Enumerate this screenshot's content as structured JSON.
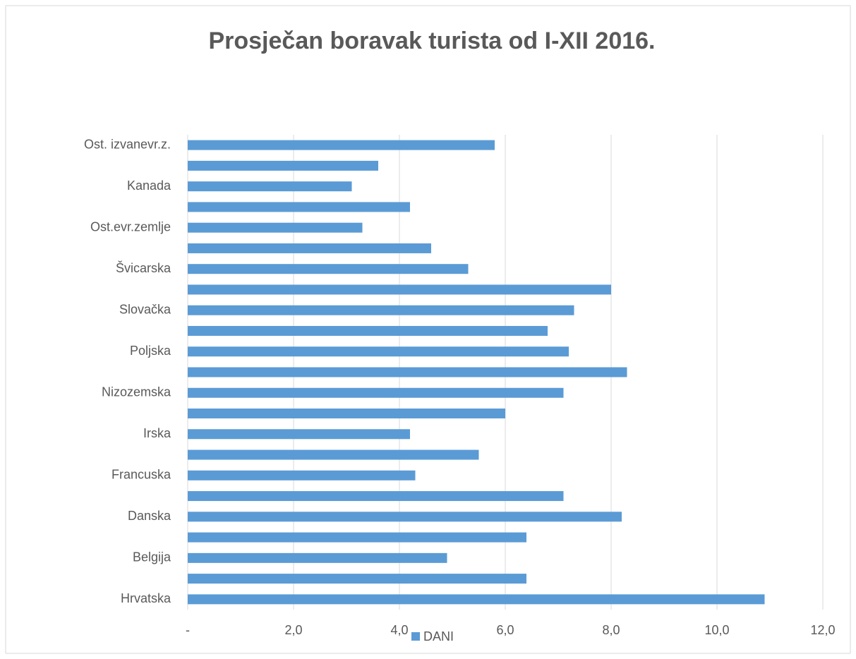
{
  "chart_data": {
    "type": "bar",
    "orientation": "horizontal",
    "title": "Prosječan boravak turista od I-XII 2016.",
    "categories": [
      "Hrvatska",
      null,
      "Belgija",
      null,
      "Danska",
      null,
      "Francuska",
      null,
      "Irska",
      null,
      "Nizozemska",
      null,
      "Poljska",
      null,
      "Slovačka",
      null,
      "Švicarska",
      null,
      "Ost.evr.zemlje",
      null,
      "Kanada",
      null,
      "Ost. izvanevr.z."
    ],
    "series": [
      {
        "name": "DANI",
        "color": "#5b9bd5",
        "values": [
          10.9,
          6.4,
          4.9,
          6.4,
          8.2,
          7.1,
          4.3,
          5.5,
          4.2,
          6.0,
          7.1,
          8.3,
          7.2,
          6.8,
          7.3,
          8.0,
          5.3,
          4.6,
          3.3,
          4.2,
          3.1,
          3.6,
          5.8
        ]
      }
    ],
    "xlim": [
      0,
      12
    ],
    "xticks": [
      {
        "value": 0,
        "label": "-"
      },
      {
        "value": 2,
        "label": "2,0"
      },
      {
        "value": 4,
        "label": "4,0"
      },
      {
        "value": 6,
        "label": "6,0"
      },
      {
        "value": 8,
        "label": "8,0"
      },
      {
        "value": 10,
        "label": "10,0"
      },
      {
        "value": 12,
        "label": "12,0"
      }
    ],
    "grid": true,
    "legend": "bottom"
  }
}
